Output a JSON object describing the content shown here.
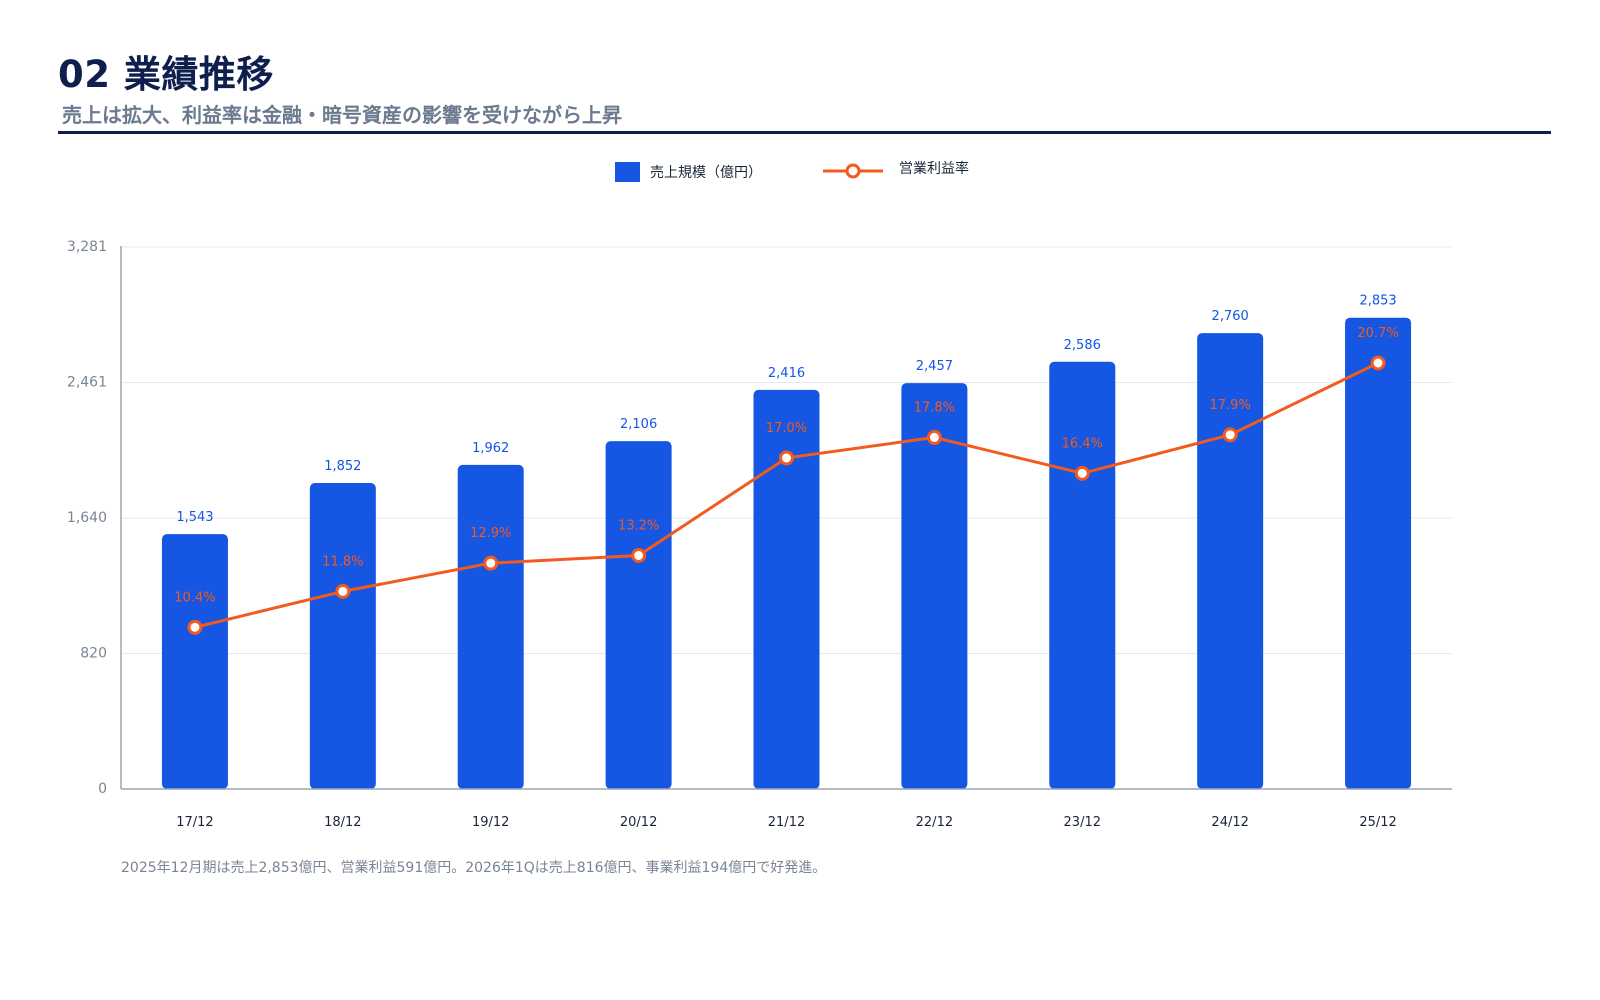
{
  "header": {
    "title": "02 業績推移",
    "subtitle": "売上は拡大、利益率は金融・暗号資産の影響を受けながら上昇"
  },
  "legend": {
    "bar_label": "売上規模（億円）",
    "line_label": "営業利益率"
  },
  "colors": {
    "bar": "#1556e3",
    "line": "#f25a1e",
    "title": "#0f1f4d",
    "axis": "#9aa5b4"
  },
  "chart_data": {
    "type": "bar",
    "categories": [
      "17/12",
      "18/12",
      "19/12",
      "20/12",
      "21/12",
      "22/12",
      "23/12",
      "24/12",
      "25/12"
    ],
    "series": [
      {
        "name": "売上規模（億円）",
        "type": "bar",
        "values": [
          1543,
          1852,
          1962,
          2106,
          2416,
          2457,
          2586,
          2760,
          2853
        ],
        "labels": [
          "1,543",
          "1,852",
          "1,962",
          "2,106",
          "2,416",
          "2,457",
          "2,586",
          "2,760",
          "2,853"
        ]
      },
      {
        "name": "営業利益率",
        "type": "line",
        "values": [
          10.4,
          11.8,
          12.9,
          13.2,
          17.0,
          17.8,
          16.4,
          17.9,
          20.7
        ],
        "labels": [
          "10.4%",
          "11.8%",
          "12.9%",
          "13.2%",
          "17.0%",
          "17.8%",
          "16.4%",
          "17.9%",
          "20.7%"
        ]
      }
    ],
    "ylim": [
      0,
      3281
    ],
    "yticks": [
      0,
      820,
      1640,
      2461,
      3281
    ],
    "ytick_labels": [
      "0",
      "820",
      "1,640",
      "2,461",
      "3,281"
    ],
    "grid": true,
    "legend_position": "top-center"
  },
  "footnote": "2025年12月期は売上2,853億円、営業利益591億円。2026年1Qは売上816億円、事業利益194億円で好発進。"
}
